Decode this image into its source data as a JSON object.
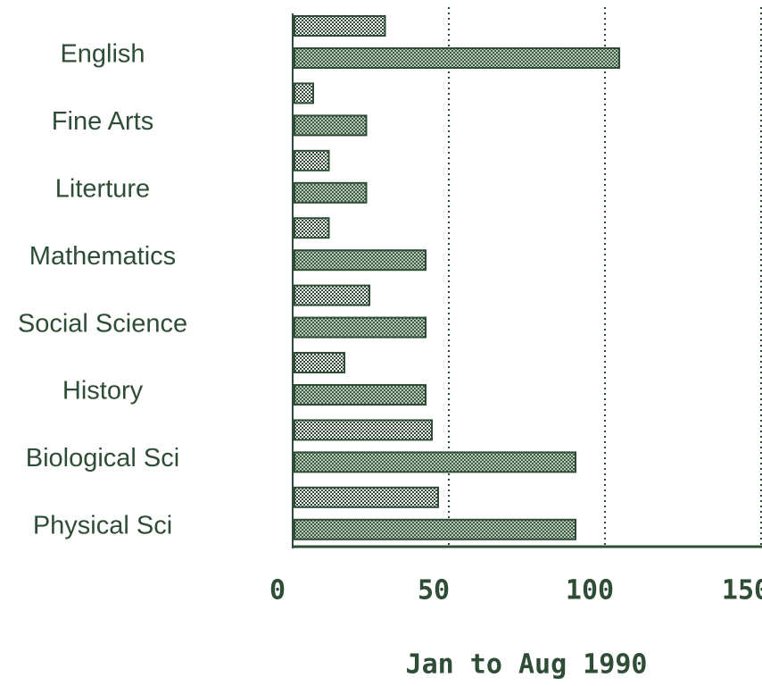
{
  "chart_data": {
    "type": "barh",
    "x_label": "Jan to Aug 1990",
    "categories": [
      "English",
      "Fine Arts",
      "Literture",
      "Mathematics",
      "Social Science",
      "History",
      "Biological Sci",
      "Physical Sci"
    ],
    "series": [
      {
        "color": "#ffffff",
        "values": [
          29,
          6,
          11,
          11,
          24,
          16,
          44,
          46
        ]
      },
      {
        "color": "#3d5c44",
        "values": [
          104,
          23,
          23,
          42,
          42,
          42,
          90,
          90
        ]
      }
    ],
    "xlim": [
      0,
      150
    ],
    "xticks": [
      0,
      50,
      100,
      150
    ],
    "grid": true
  }
}
